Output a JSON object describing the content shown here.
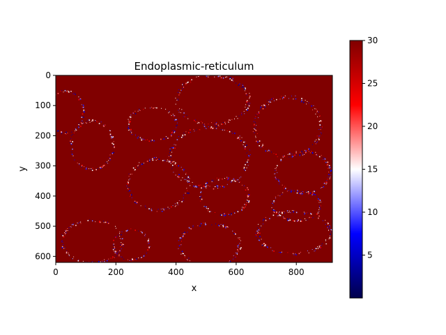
{
  "chart_data": {
    "type": "heatmap",
    "title": "Endoplasmic-reticulum",
    "xlabel": "x",
    "ylabel": "y",
    "xlim": [
      0,
      920
    ],
    "ylim": [
      620,
      0
    ],
    "x_ticks": [
      0,
      200,
      400,
      600,
      800
    ],
    "y_ticks": [
      0,
      100,
      200,
      300,
      400,
      500,
      600
    ],
    "colormap": "seismic",
    "colormap_stops": [
      "#00004c",
      "#0000ff",
      "#ffffff",
      "#ff0000",
      "#800000"
    ],
    "colorbar": {
      "range": [
        0,
        30
      ],
      "ticks": [
        5,
        10,
        15,
        20,
        25,
        30
      ]
    },
    "background_value": 30,
    "background_color": "#800000",
    "grid": false,
    "structures": [
      {
        "cx": 520,
        "cy": 80,
        "rx": 120,
        "ry": 80
      },
      {
        "cx": 770,
        "cy": 170,
        "rx": 110,
        "ry": 100
      },
      {
        "cx": 320,
        "cy": 160,
        "rx": 80,
        "ry": 55
      },
      {
        "cx": 120,
        "cy": 230,
        "rx": 70,
        "ry": 80
      },
      {
        "cx": 510,
        "cy": 270,
        "rx": 130,
        "ry": 100
      },
      {
        "cx": 820,
        "cy": 320,
        "rx": 90,
        "ry": 70
      },
      {
        "cx": 340,
        "cy": 360,
        "rx": 100,
        "ry": 85
      },
      {
        "cx": 560,
        "cy": 400,
        "rx": 80,
        "ry": 60
      },
      {
        "cx": 800,
        "cy": 430,
        "rx": 80,
        "ry": 50
      },
      {
        "cx": 120,
        "cy": 550,
        "rx": 100,
        "ry": 70
      },
      {
        "cx": 510,
        "cy": 560,
        "rx": 100,
        "ry": 70
      },
      {
        "cx": 790,
        "cy": 520,
        "rx": 120,
        "ry": 70
      },
      {
        "cx": 250,
        "cy": 560,
        "rx": 60,
        "ry": 50
      },
      {
        "cx": 30,
        "cy": 120,
        "rx": 60,
        "ry": 70
      }
    ]
  }
}
